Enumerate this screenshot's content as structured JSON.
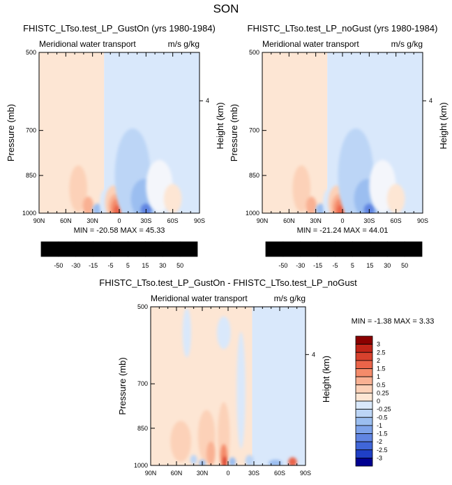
{
  "figure": {
    "title": "SON"
  },
  "colors": {
    "positive_scale": [
      "#fde6d4",
      "#fcd1b8",
      "#f9b193",
      "#f48b6a",
      "#ea6449",
      "#d8412d",
      "#c12418",
      "#8b0000"
    ],
    "negative_scale": [
      "#d9e8fb",
      "#bcd5f6",
      "#9bbef0",
      "#7ea3ea",
      "#6185e2",
      "#4066d8",
      "#1f3fc6",
      "#000090"
    ]
  },
  "chart_data": [
    {
      "type": "heatmap",
      "title": "FHISTC_LTso.test_LP_GustOn (yrs 1980-1984)",
      "subtitle_left": "Meridional water transport",
      "subtitle_right": "m/s g/kg",
      "ylabel": "Pressure (mb)",
      "ylabel_right": "Height (km)",
      "x_ticks": [
        "90N",
        "60N",
        "30N",
        "0",
        "30S",
        "60S",
        "90S"
      ],
      "x_range": [
        90,
        -90
      ],
      "y_ticks": [
        500,
        700,
        850,
        1000
      ],
      "y_range": [
        500,
        1000
      ],
      "y_log": true,
      "y_right_ticks": [
        {
          "label": "4",
          "pressure": 616
        }
      ],
      "min_label": "MIN =",
      "min_value": "-20.58",
      "max_label": "MAX =",
      "max_value": "45.33",
      "colorbar_labels": [
        "-50",
        "-30",
        "-15",
        "-5",
        "5",
        "15",
        "30",
        "50"
      ],
      "features": [
        {
          "kind": "background",
          "lat_from": 90,
          "lat_to": 17,
          "level": 1
        },
        {
          "kind": "background",
          "lat_from": 17,
          "lat_to": -90,
          "level": -1
        },
        {
          "lat": 48,
          "p": 760,
          "dlat": 20,
          "dp": 190,
          "level": 1
        },
        {
          "lat": 46,
          "p": 900,
          "dlat": 10,
          "dp": 90,
          "level": 2
        },
        {
          "lat": 35,
          "p": 970,
          "dlat": 6,
          "dp": 40,
          "level": 3
        },
        {
          "lat": 24,
          "p": 985,
          "dlat": 6,
          "dp": 25,
          "level": -3
        },
        {
          "lat": 16,
          "p": 960,
          "dlat": 6,
          "dp": 60,
          "level": -1
        },
        {
          "lat": 6,
          "p": 955,
          "dlat": 10,
          "dp": 70,
          "level": 2
        },
        {
          "lat": 4,
          "p": 970,
          "dlat": 8,
          "dp": 50,
          "level": 3
        },
        {
          "lat": 3,
          "p": 980,
          "dlat": 6,
          "dp": 40,
          "level": 4
        },
        {
          "lat": 2,
          "p": 990,
          "dlat": 4,
          "dp": 25,
          "level": 5
        },
        {
          "lat": -15,
          "p": 850,
          "dlat": 20,
          "dp": 170,
          "level": -2
        },
        {
          "lat": -28,
          "p": 940,
          "dlat": 15,
          "dp": 80,
          "level": -3
        },
        {
          "lat": -30,
          "p": 985,
          "dlat": 6,
          "dp": 25,
          "level": -5
        },
        {
          "lat": -45,
          "p": 890,
          "dlat": 15,
          "dp": 100,
          "level": 0
        },
        {
          "lat": -60,
          "p": 940,
          "dlat": 10,
          "dp": 60,
          "level": 1
        }
      ]
    },
    {
      "type": "heatmap",
      "title": "FHISTC_LTso.test_LP_noGust (yrs 1980-1984)",
      "subtitle_left": "Meridional water transport",
      "subtitle_right": "m/s g/kg",
      "ylabel": "Pressure (mb)",
      "ylabel_right": "Height (km)",
      "x_ticks": [
        "90N",
        "60N",
        "30N",
        "0",
        "30S",
        "60S",
        "90S"
      ],
      "x_range": [
        90,
        -90
      ],
      "y_ticks": [
        500,
        700,
        850,
        1000
      ],
      "y_range": [
        500,
        1000
      ],
      "y_log": true,
      "y_right_ticks": [
        {
          "label": "4",
          "pressure": 616
        }
      ],
      "min_label": "MIN =",
      "min_value": "-21.24",
      "max_label": "MAX =",
      "max_value": "44.01",
      "colorbar_labels": [
        "-50",
        "-30",
        "-15",
        "-5",
        "5",
        "15",
        "30",
        "50"
      ],
      "features": [
        {
          "kind": "background",
          "lat_from": 90,
          "lat_to": 17,
          "level": 1
        },
        {
          "kind": "background",
          "lat_from": 17,
          "lat_to": -90,
          "level": -1
        },
        {
          "lat": 48,
          "p": 760,
          "dlat": 20,
          "dp": 190,
          "level": 1
        },
        {
          "lat": 46,
          "p": 900,
          "dlat": 10,
          "dp": 90,
          "level": 2
        },
        {
          "lat": 35,
          "p": 970,
          "dlat": 6,
          "dp": 40,
          "level": 3
        },
        {
          "lat": 24,
          "p": 985,
          "dlat": 6,
          "dp": 25,
          "level": -3
        },
        {
          "lat": 16,
          "p": 960,
          "dlat": 6,
          "dp": 60,
          "level": -1
        },
        {
          "lat": 6,
          "p": 955,
          "dlat": 10,
          "dp": 70,
          "level": 2
        },
        {
          "lat": 4,
          "p": 970,
          "dlat": 8,
          "dp": 50,
          "level": 3
        },
        {
          "lat": 3,
          "p": 980,
          "dlat": 6,
          "dp": 40,
          "level": 4
        },
        {
          "lat": 2,
          "p": 990,
          "dlat": 4,
          "dp": 25,
          "level": 5
        },
        {
          "lat": -15,
          "p": 850,
          "dlat": 20,
          "dp": 170,
          "level": -2
        },
        {
          "lat": -28,
          "p": 940,
          "dlat": 15,
          "dp": 80,
          "level": -3
        },
        {
          "lat": -30,
          "p": 985,
          "dlat": 6,
          "dp": 25,
          "level": -5
        },
        {
          "lat": -45,
          "p": 890,
          "dlat": 15,
          "dp": 100,
          "level": 0
        },
        {
          "lat": -60,
          "p": 940,
          "dlat": 10,
          "dp": 60,
          "level": 1
        }
      ]
    },
    {
      "type": "heatmap",
      "title": "FHISTC_LTso.test_LP_GustOn - FHISTC_LTso.test_LP_noGust",
      "subtitle_left": "Meridional water transport",
      "subtitle_right": "m/s g/kg",
      "ylabel": "Pressure (mb)",
      "ylabel_right": "Height (km)",
      "x_ticks": [
        "90N",
        "60N",
        "30N",
        "0",
        "30S",
        "60S",
        "90S"
      ],
      "x_range": [
        90,
        -90
      ],
      "y_ticks": [
        500,
        700,
        850,
        1000
      ],
      "y_range": [
        500,
        1000
      ],
      "y_log": true,
      "y_right_ticks": [
        {
          "label": "4",
          "pressure": 616
        }
      ],
      "min_label": "MIN =",
      "min_value": "-1.38",
      "max_label": "MAX =",
      "max_value": "3.33",
      "colorbar_labels": [
        "3",
        "2.5",
        "2",
        "1.5",
        "1",
        "0.5",
        "0.25",
        "0",
        "-0.25",
        "-0.5",
        "-1",
        "-1.5",
        "-2",
        "-2.5",
        "-3"
      ],
      "features": [
        {
          "kind": "background",
          "lat_from": 90,
          "lat_to": -28,
          "level": 1
        },
        {
          "kind": "background",
          "lat_from": -28,
          "lat_to": -90,
          "level": -1
        },
        {
          "lat": 48,
          "p": 560,
          "dlat": 5,
          "dp": 60,
          "level": -1
        },
        {
          "lat": 5,
          "p": 560,
          "dlat": 8,
          "dp": 40,
          "level": -1
        },
        {
          "lat": -15,
          "p": 720,
          "dlat": 5,
          "dp": 180,
          "level": -1
        },
        {
          "lat": 55,
          "p": 900,
          "dlat": 12,
          "dp": 80,
          "level": 2
        },
        {
          "lat": 25,
          "p": 880,
          "dlat": 10,
          "dp": 100,
          "level": 2
        },
        {
          "lat": 20,
          "p": 950,
          "dlat": 5,
          "dp": 50,
          "level": 3
        },
        {
          "lat": 5,
          "p": 880,
          "dlat": 7,
          "dp": 130,
          "level": 2
        },
        {
          "lat": 5,
          "p": 960,
          "dlat": 4,
          "dp": 50,
          "level": 4
        },
        {
          "lat": 4,
          "p": 985,
          "dlat": 2,
          "dp": 25,
          "level": 6
        },
        {
          "lat": 30,
          "p": 990,
          "dlat": 4,
          "dp": 15,
          "level": -3
        },
        {
          "lat": 40,
          "p": 975,
          "dlat": 4,
          "dp": 20,
          "level": -2
        },
        {
          "lat": -5,
          "p": 985,
          "dlat": 4,
          "dp": 20,
          "level": -3
        },
        {
          "lat": -25,
          "p": 980,
          "dlat": 5,
          "dp": 25,
          "level": -2
        },
        {
          "lat": -55,
          "p": 990,
          "dlat": 8,
          "dp": 15,
          "level": -3
        },
        {
          "lat": -75,
          "p": 985,
          "dlat": 5,
          "dp": 20,
          "level": 5
        }
      ]
    }
  ]
}
